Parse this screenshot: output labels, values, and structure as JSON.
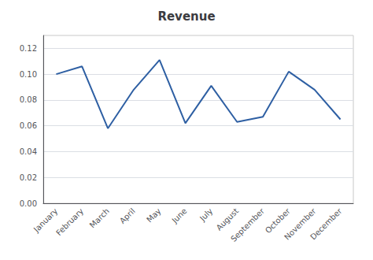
{
  "chart_data": {
    "type": "line",
    "title": "Revenue",
    "categories": [
      "January",
      "February",
      "March",
      "April",
      "May",
      "June",
      "July",
      "August",
      "September",
      "October",
      "November",
      "December"
    ],
    "values": [
      0.1,
      0.106,
      0.058,
      0.088,
      0.111,
      0.062,
      0.091,
      0.063,
      0.067,
      0.102,
      0.088,
      0.065
    ],
    "color": "#2E5FA3",
    "ylim": [
      0.0,
      0.13
    ],
    "yticks": [
      {
        "value": 0,
        "label": "0.00"
      },
      0.02,
      0.04,
      0.06,
      0.08,
      {
        "value": 0.1,
        "label": "0.10"
      },
      0.12
    ],
    "grid": true
  }
}
